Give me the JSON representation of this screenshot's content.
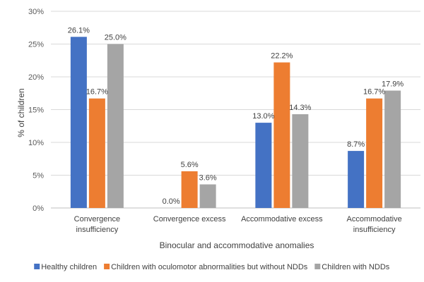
{
  "chart_data": {
    "type": "bar",
    "title": "",
    "xlabel": "Binocular and accommodative anomalies",
    "ylabel": "% of children",
    "ylim": [
      0,
      30
    ],
    "yticks": [
      "0%",
      "5%",
      "10%",
      "15%",
      "20%",
      "25%",
      "30%"
    ],
    "ytick_values": [
      0,
      5,
      10,
      15,
      20,
      25,
      30
    ],
    "grid": true,
    "legend_position": "bottom",
    "categories": [
      [
        "Convergence",
        "insufficiency"
      ],
      [
        "Convergence excess"
      ],
      [
        "Accommodative excess"
      ],
      [
        "Accommodative",
        "insufficiency"
      ]
    ],
    "series": [
      {
        "name": "Healthy children",
        "color": "#4472C4",
        "values": [
          26.1,
          0.0,
          13.0,
          8.7
        ],
        "labels": [
          "26.1%",
          "0.0%",
          "13.0%",
          "8.7%"
        ]
      },
      {
        "name": "Children with oculomotor abnormalities but without NDDs",
        "color": "#ED7D31",
        "values": [
          16.7,
          5.6,
          22.2,
          16.7
        ],
        "labels": [
          "16.7%",
          "5.6%",
          "22.2%",
          "16.7%"
        ]
      },
      {
        "name": "Children with NDDs",
        "color": "#A5A5A5",
        "values": [
          25.0,
          3.6,
          14.3,
          17.9
        ],
        "labels": [
          "25.0%",
          "3.6%",
          "14.3%",
          "17.9%"
        ]
      }
    ]
  }
}
